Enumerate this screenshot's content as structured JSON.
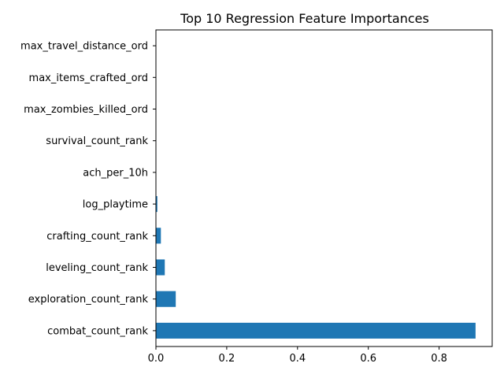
{
  "chart_data": {
    "type": "bar",
    "orientation": "horizontal",
    "title": "Top 10 Regression Feature Importances",
    "xlabel": "",
    "ylabel": "",
    "categories": [
      "combat_count_rank",
      "exploration_count_rank",
      "leveling_count_rank",
      "crafting_count_rank",
      "log_playtime",
      "ach_per_10h",
      "survival_count_rank",
      "max_zombies_killed_ord",
      "max_items_crafted_ord",
      "max_travel_distance_ord"
    ],
    "values": [
      0.903,
      0.056,
      0.025,
      0.014,
      0.004,
      0.0,
      0.0,
      0.0,
      0.0,
      0.0
    ],
    "xlim": [
      0,
      0.95
    ],
    "xticks": [
      0.0,
      0.2,
      0.4,
      0.6,
      0.8
    ],
    "xtick_labels": [
      "0.0",
      "0.2",
      "0.4",
      "0.6",
      "0.8"
    ],
    "grid": false,
    "legend": "none",
    "bar_color": "#1f77b4"
  }
}
